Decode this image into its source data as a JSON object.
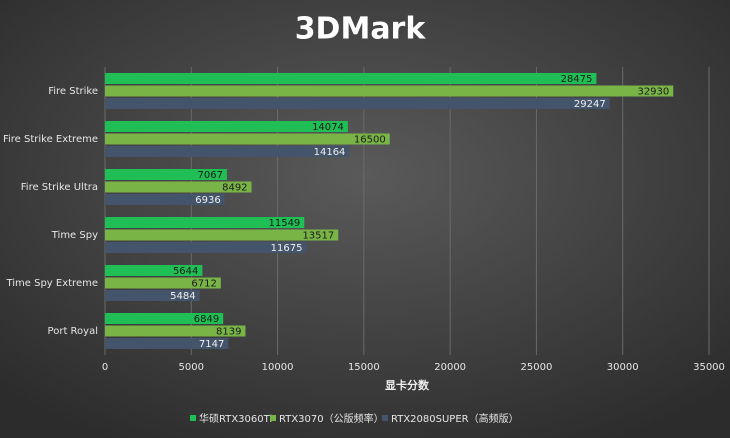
{
  "chart_data": {
    "type": "barh",
    "title": "3DMark",
    "xlabel": "显卡分数",
    "categories": [
      "Fire Strike",
      "Fire Strike Extreme",
      "Fire Strike Ultra",
      "Time Spy",
      "Time Spy Extreme",
      "Port Royal"
    ],
    "series": [
      {
        "name": "华硕RTX3060Ti",
        "color": "#1fbf55",
        "values": [
          28475,
          14074,
          7067,
          11549,
          5644,
          6849
        ]
      },
      {
        "name": "RTX3070（公版频率）",
        "color": "#79b447",
        "values": [
          32930,
          16500,
          8492,
          13517,
          6712,
          8139
        ]
      },
      {
        "name": "RTX2080SUPER（高频版）",
        "color": "#44546a",
        "values": [
          29247,
          14164,
          6936,
          11675,
          5484,
          7147
        ]
      }
    ],
    "xlim": [
      0,
      35000
    ],
    "xticks": [
      0,
      5000,
      10000,
      15000,
      20000,
      25000,
      30000,
      35000
    ],
    "grid": true,
    "legend": "bottom"
  }
}
